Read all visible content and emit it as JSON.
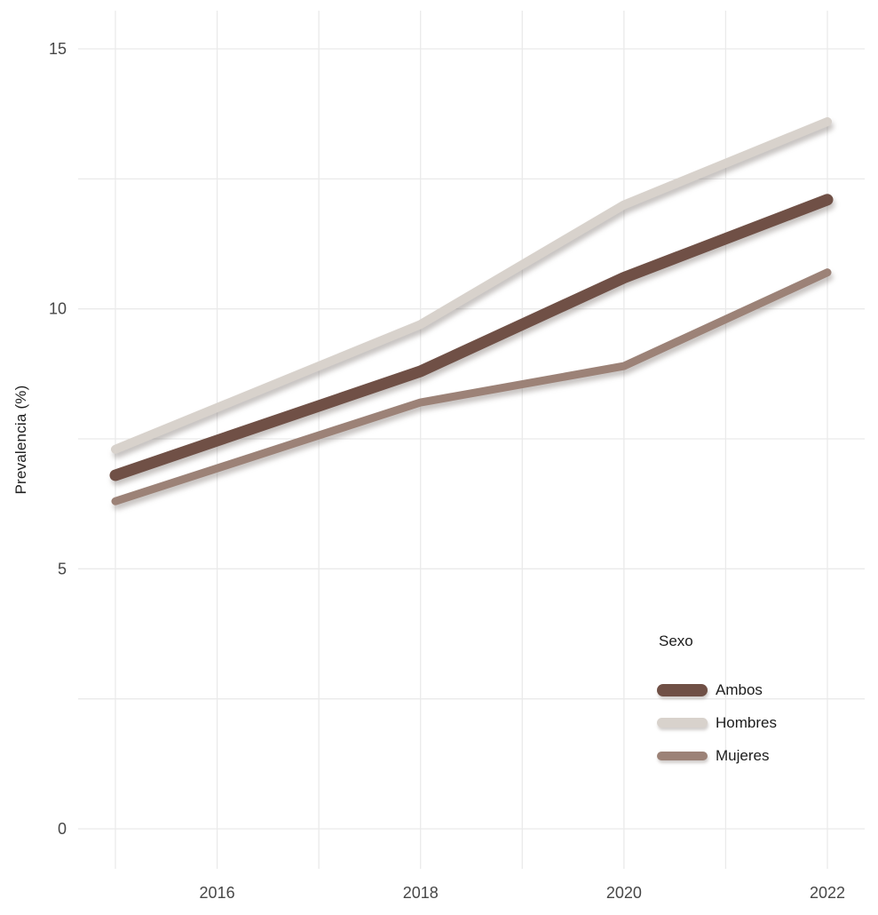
{
  "chart_data": {
    "type": "line",
    "title": "",
    "xlabel": "",
    "ylabel": "Prevalencia (%)",
    "x": [
      2015,
      2018,
      2020,
      2022
    ],
    "series": [
      {
        "name": "Ambos",
        "color": "#705046",
        "line_width": 13,
        "values": [
          6.8,
          8.8,
          10.6,
          12.1
        ]
      },
      {
        "name": "Hombres",
        "color": "#D8D2CC",
        "line_width": 10,
        "values": [
          7.3,
          9.7,
          12.0,
          13.6
        ]
      },
      {
        "name": "Mujeres",
        "color": "#9C8277",
        "line_width": 9,
        "values": [
          6.3,
          8.2,
          8.9,
          10.7
        ]
      }
    ],
    "xlim": [
      2014.6,
      2022.4
    ],
    "ylim": [
      -0.8,
      15.7
    ],
    "x_tick_values": [
      2016,
      2018,
      2020,
      2022
    ],
    "x_tick_labels": [
      "2016",
      "2018",
      "2020",
      "2022"
    ],
    "x_grid_values": [
      2015,
      2016,
      2017,
      2018,
      2019,
      2020,
      2021,
      2022
    ],
    "y_tick_values": [
      0,
      5,
      10,
      15
    ],
    "y_tick_labels": [
      "0",
      "5",
      "10",
      "15"
    ],
    "y_grid_values": [
      0,
      2.5,
      5,
      7.5,
      10,
      12.5,
      15
    ],
    "grid": true,
    "grid_color": "#EAEAEA",
    "tick_label_color": "#474747",
    "legend": {
      "title": "Sexo",
      "position": "right-middle",
      "entries": [
        "Ambos",
        "Hombres",
        "Mujeres"
      ]
    }
  }
}
